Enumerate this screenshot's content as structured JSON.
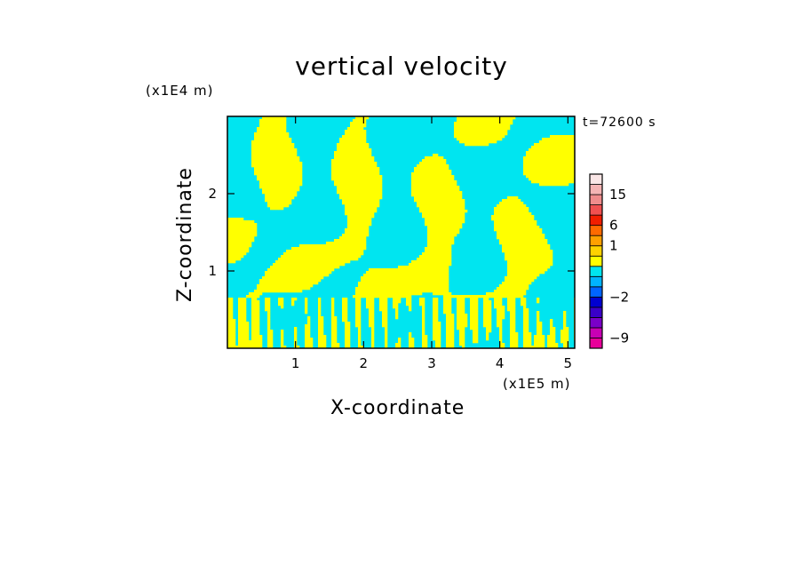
{
  "chart_data": {
    "type": "heatmap",
    "title": "vertical velocity",
    "xlabel": "X-coordinate",
    "ylabel": "Z-coordinate",
    "x_scale_label": "(x1E5 m)",
    "y_scale_label": "(x1E4 m)",
    "annotation": "t=72600 s",
    "xlim": [
      0,
      5.1
    ],
    "ylim": [
      0,
      3.0
    ],
    "x_ticks": [
      1,
      2,
      3,
      4,
      5
    ],
    "x_tick_labels": [
      "1",
      "2",
      "3",
      "4",
      "5"
    ],
    "y_ticks": [
      1,
      2
    ],
    "y_tick_labels": [
      "1",
      "2"
    ],
    "grid": false,
    "field_colors": {
      "negative": "#00E5F0",
      "positive": "#FFFF00"
    },
    "description_pattern": "alternating positive/negative bands tilted up-right, finer near surface",
    "colorbar": {
      "levels": [
        -12,
        -9,
        -6,
        -4,
        -3,
        -2,
        -1,
        -0.5,
        0,
        0.5,
        1,
        2,
        6,
        9,
        12,
        15,
        20,
        25
      ],
      "colors": [
        "#E8009A",
        "#C800B4",
        "#7A00C8",
        "#3A00C8",
        "#0000D0",
        "#0064FF",
        "#00B4FF",
        "#00E5F0",
        "#FFFF00",
        "#FFD200",
        "#FFA000",
        "#FF6A00",
        "#F01E00",
        "#F05050",
        "#F08C8C",
        "#F5B4B4",
        "#FAE6E6"
      ],
      "tick_values": [
        15,
        6,
        1,
        -2,
        -9
      ],
      "tick_labels": [
        "15",
        "6",
        "1",
        "−2",
        "−9"
      ]
    }
  }
}
